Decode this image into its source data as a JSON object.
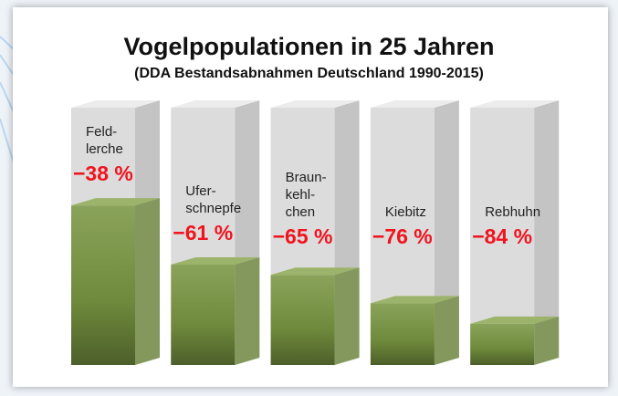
{
  "chart_data": {
    "type": "bar",
    "title": "Vogelpopulationen in 25 Jahren",
    "subtitle": "(DDA Bestandsabnahmen Deutschland 1990-2015)",
    "categories": [
      "Feld-\nlerche",
      "Ufer-\nschnepfe",
      "Braun-\nkehl-\nchen",
      "Kiebitz",
      "Rebhuhn"
    ],
    "values": [
      -38,
      -61,
      -65,
      -76,
      -84
    ],
    "value_labels": [
      "−38 %",
      "−61 %",
      "−65 %",
      "−76 %",
      "−84 %"
    ],
    "ylim": [
      -100,
      0
    ],
    "color": "#6f8a3c",
    "label_color": "#f0141e"
  }
}
